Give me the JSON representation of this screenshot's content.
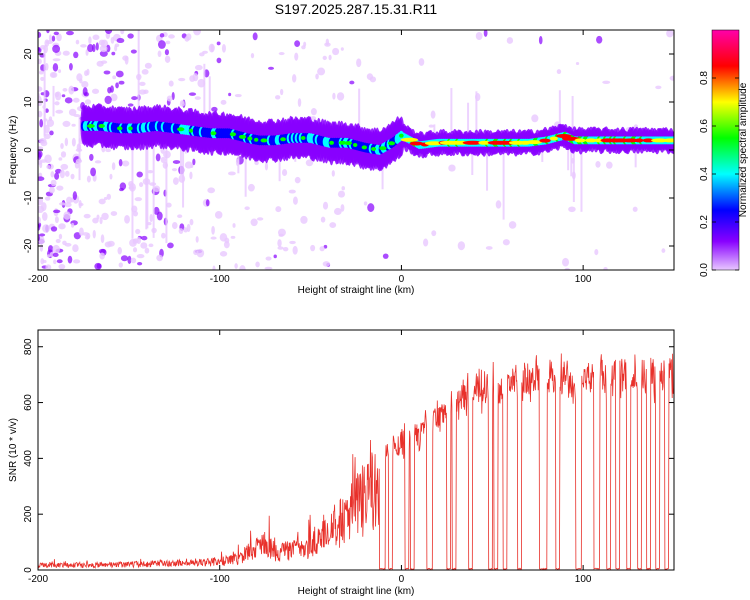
{
  "title": "S197.2025.287.15.31.R11",
  "chart_data": [
    {
      "type": "heatmap",
      "name": "spectrogram",
      "xlabel": "Height of straight line (km)",
      "ylabel": "Frequency (Hz)",
      "xlim": [
        -200,
        150
      ],
      "ylim": [
        -25,
        25
      ],
      "xticks": [
        -200,
        -100,
        0,
        100
      ],
      "yticks": [
        -20,
        -10,
        0,
        10,
        20
      ],
      "ridge": {
        "x": [
          -175,
          -165,
          -155,
          -145,
          -135,
          -125,
          -115,
          -105,
          -95,
          -85,
          -78,
          -70,
          -60,
          -50,
          -40,
          -30,
          -20,
          -12,
          -5,
          0,
          10,
          20,
          30,
          40,
          50,
          60,
          70,
          80,
          85,
          90,
          95,
          100,
          110,
          120,
          130,
          140,
          150
        ],
        "y": [
          5,
          5,
          4.5,
          4.5,
          5,
          4.5,
          4,
          3.5,
          3.5,
          2.5,
          2,
          2,
          2.5,
          2.5,
          1.5,
          1.5,
          0.5,
          0,
          1.5,
          3,
          1,
          1.5,
          1.5,
          1.5,
          1.5,
          1.5,
          1.5,
          2,
          2.5,
          3,
          2,
          2,
          2,
          2,
          2,
          2,
          2
        ]
      },
      "colorbar": {
        "label": "Normalized spectral amplitude",
        "ticks": [
          0.0,
          0.2,
          0.4,
          0.6,
          0.8
        ],
        "range": [
          0,
          1
        ],
        "colors": [
          "#e8c8ff",
          "#8800ff",
          "#0000ff",
          "#00ffff",
          "#00ff00",
          "#ffff00",
          "#ff0000",
          "#ff00aa"
        ]
      }
    },
    {
      "type": "line",
      "name": "snr",
      "xlabel": "Height of straight line (km)",
      "ylabel": "SNR (10 * v/v)",
      "xlim": [
        -200,
        150
      ],
      "ylim": [
        0,
        860
      ],
      "xticks": [
        -200,
        -100,
        0,
        100
      ],
      "yticks": [
        0,
        200,
        400,
        600,
        800
      ],
      "color": "#e8302a",
      "envelope": {
        "x": [
          -200,
          -150,
          -120,
          -100,
          -90,
          -80,
          -75,
          -70,
          -60,
          -50,
          -45,
          -40,
          -35,
          -30,
          -25,
          -20,
          -15,
          -10,
          -5,
          0,
          5,
          10,
          20,
          30,
          40,
          50,
          60,
          70,
          80,
          90,
          95,
          100,
          110,
          120,
          130,
          140,
          150
        ],
        "y": [
          25,
          30,
          40,
          45,
          60,
          120,
          150,
          100,
          110,
          130,
          200,
          220,
          250,
          280,
          350,
          400,
          420,
          450,
          480,
          500,
          520,
          550,
          600,
          650,
          700,
          720,
          740,
          740,
          760,
          780,
          700,
          760,
          770,
          760,
          760,
          760,
          760
        ]
      },
      "dropouts": [
        [
          -12,
          -9
        ],
        [
          -7,
          -5
        ],
        [
          2,
          4
        ],
        [
          5,
          7
        ],
        [
          14,
          17
        ],
        [
          25,
          27
        ],
        [
          28,
          30
        ],
        [
          37,
          39
        ],
        [
          48,
          50
        ],
        [
          51,
          53
        ],
        [
          56,
          58
        ],
        [
          64,
          66
        ],
        [
          76,
          80
        ],
        [
          85,
          87
        ],
        [
          96,
          99
        ],
        [
          106,
          109
        ],
        [
          113,
          115
        ],
        [
          118,
          120
        ],
        [
          124,
          126
        ],
        [
          130,
          132
        ],
        [
          135,
          137
        ],
        [
          140,
          142
        ],
        [
          145,
          147
        ]
      ]
    }
  ]
}
